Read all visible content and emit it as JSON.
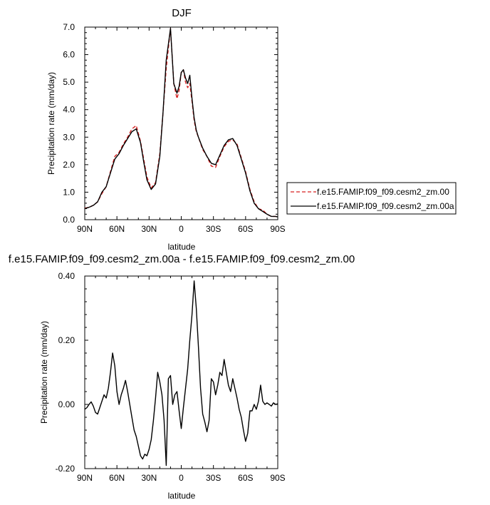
{
  "chart_data": [
    {
      "type": "line",
      "title": "DJF",
      "xlabel": "latitude",
      "ylabel": "Precipitation rate (mm/day)",
      "xlim": [
        90,
        -90
      ],
      "ylim": [
        0,
        7
      ],
      "xtick_values": [
        90,
        60,
        30,
        0,
        -30,
        -60,
        -90
      ],
      "xtick_labels": [
        "90N",
        "60N",
        "30N",
        "0",
        "30S",
        "60S",
        "90S"
      ],
      "ytick_values": [
        0,
        1,
        2,
        3,
        4,
        5,
        6,
        7
      ],
      "ytick_labels": [
        "0.0",
        "1.0",
        "2.0",
        "3.0",
        "4.0",
        "5.0",
        "6.0",
        "7.0"
      ],
      "legend_position": "right",
      "series": [
        {
          "name": "f.e15.FAMIP.f09_f09.cesm2_zm.00",
          "color": "#d62020",
          "dash": true,
          "x": [
            90,
            86,
            82,
            78,
            74,
            70,
            66,
            62,
            58,
            54,
            50,
            46,
            42,
            38,
            35,
            32,
            28,
            24,
            20,
            17,
            14,
            10,
            7,
            4,
            2,
            0,
            -2,
            -4,
            -6,
            -8,
            -10,
            -12,
            -14,
            -16,
            -20,
            -24,
            -28,
            -32,
            -36,
            -40,
            -44,
            -48,
            -52,
            -56,
            -60,
            -64,
            -68,
            -72,
            -76,
            -80,
            -84,
            -88,
            -90
          ],
          "y": [
            0.42,
            0.45,
            0.52,
            0.65,
            0.95,
            1.2,
            1.75,
            2.3,
            2.45,
            2.75,
            3.0,
            3.3,
            3.42,
            2.85,
            2.2,
            1.55,
            1.15,
            1.35,
            2.4,
            3.9,
            5.5,
            6.95,
            4.95,
            4.4,
            4.7,
            5.35,
            5.45,
            5.0,
            4.8,
            4.95,
            4.3,
            3.6,
            3.2,
            3.0,
            2.55,
            2.3,
            1.95,
            1.9,
            2.3,
            2.65,
            2.85,
            2.9,
            2.75,
            2.25,
            1.75,
            1.1,
            0.65,
            0.4,
            0.35,
            0.2,
            0.12,
            0.12,
            0.1
          ]
        },
        {
          "name": "f.e15.FAMIP.f09_f09.cesm2_zm.00a",
          "color": "#000000",
          "dash": false,
          "x": [
            90,
            86,
            82,
            78,
            74,
            70,
            66,
            62,
            58,
            54,
            50,
            46,
            42,
            38,
            35,
            32,
            28,
            24,
            20,
            17,
            14,
            10,
            7,
            4,
            2,
            0,
            -2,
            -4,
            -6,
            -8,
            -10,
            -12,
            -14,
            -16,
            -20,
            -24,
            -28,
            -32,
            -36,
            -40,
            -44,
            -48,
            -52,
            -56,
            -60,
            -64,
            -68,
            -72,
            -76,
            -80,
            -84,
            -88,
            -90
          ],
          "y": [
            0.4,
            0.45,
            0.52,
            0.65,
            1.0,
            1.2,
            1.7,
            2.2,
            2.4,
            2.7,
            2.95,
            3.2,
            3.3,
            2.8,
            2.1,
            1.45,
            1.1,
            1.3,
            2.3,
            3.9,
            5.8,
            6.95,
            4.95,
            4.6,
            4.85,
            5.35,
            5.45,
            5.15,
            4.95,
            5.25,
            4.4,
            3.7,
            3.25,
            3.0,
            2.6,
            2.3,
            2.05,
            2.0,
            2.35,
            2.7,
            2.9,
            2.95,
            2.7,
            2.2,
            1.7,
            1.05,
            0.6,
            0.4,
            0.3,
            0.2,
            0.12,
            0.12,
            0.1
          ]
        }
      ]
    },
    {
      "type": "line",
      "title": "f.e15.FAMIP.f09_f09.cesm2_zm.00a - f.e15.FAMIP.f09_f09.cesm2_zm.00",
      "xlabel": "latitude",
      "ylabel": "Precipitation rate (mm/day)",
      "xlim": [
        90,
        -90
      ],
      "ylim": [
        -0.2,
        0.4
      ],
      "xtick_values": [
        90,
        60,
        30,
        0,
        -30,
        -60,
        -90
      ],
      "xtick_labels": [
        "90N",
        "60N",
        "30N",
        "0",
        "30S",
        "60S",
        "90S"
      ],
      "ytick_values": [
        -0.2,
        0.0,
        0.2,
        0.4
      ],
      "ytick_labels": [
        "-0.20",
        "0.00",
        "0.20",
        "0.40"
      ],
      "series": [
        {
          "name": "",
          "color": "#000000",
          "dash": false,
          "x": [
            90,
            88,
            86,
            84,
            82,
            80,
            78,
            76,
            74,
            72,
            70,
            68,
            66,
            64,
            62,
            60,
            58,
            56,
            54,
            52,
            50,
            48,
            46,
            44,
            42,
            40,
            38,
            36,
            34,
            32,
            30,
            28,
            26,
            24,
            22,
            20,
            18,
            16,
            14,
            12,
            10,
            8,
            6,
            4,
            2,
            0,
            -2,
            -4,
            -6,
            -8,
            -10,
            -12,
            -14,
            -16,
            -18,
            -20,
            -22,
            -24,
            -26,
            -28,
            -30,
            -32,
            -34,
            -36,
            -38,
            -40,
            -42,
            -44,
            -46,
            -48,
            -50,
            -52,
            -54,
            -56,
            -58,
            -60,
            -62,
            -64,
            -66,
            -68,
            -70,
            -72,
            -74,
            -76,
            -78,
            -80,
            -82,
            -84,
            -86,
            -88,
            -90
          ],
          "y": [
            -0.015,
            -0.01,
            0.0,
            0.008,
            -0.005,
            -0.025,
            -0.03,
            -0.01,
            0.01,
            0.03,
            0.02,
            0.05,
            0.1,
            0.16,
            0.12,
            0.04,
            0.0,
            0.03,
            0.05,
            0.075,
            0.04,
            0.0,
            -0.04,
            -0.08,
            -0.1,
            -0.13,
            -0.16,
            -0.17,
            -0.155,
            -0.16,
            -0.14,
            -0.11,
            -0.05,
            0.02,
            0.1,
            0.07,
            0.03,
            -0.05,
            -0.19,
            0.08,
            0.09,
            0.0,
            0.03,
            0.04,
            -0.02,
            -0.075,
            -0.01,
            0.05,
            0.11,
            0.2,
            0.28,
            0.385,
            0.3,
            0.18,
            0.05,
            -0.03,
            -0.055,
            -0.085,
            -0.05,
            0.08,
            0.07,
            0.03,
            0.06,
            0.1,
            0.09,
            0.14,
            0.1,
            0.06,
            0.04,
            0.08,
            0.05,
            0.02,
            -0.015,
            -0.04,
            -0.08,
            -0.115,
            -0.09,
            -0.02,
            -0.02,
            0.0,
            -0.015,
            0.01,
            0.06,
            0.01,
            0.0,
            0.005,
            0.0,
            -0.005,
            0.005,
            0.0,
            0.002
          ]
        }
      ]
    }
  ]
}
